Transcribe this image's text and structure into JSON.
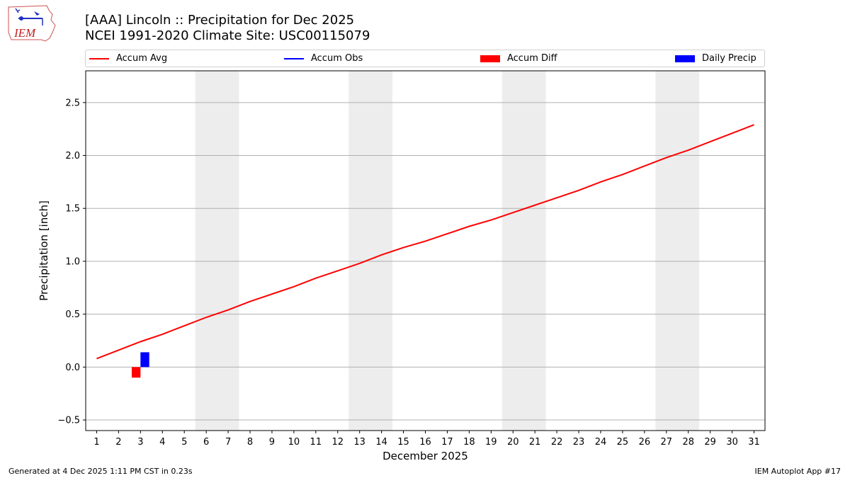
{
  "header": {
    "logo_text": "IEM",
    "title_line1": "[AAA] Lincoln :: Precipitation for Dec 2025",
    "title_line2": "NCEI 1991-2020 Climate Site: USC00115079"
  },
  "legend": [
    {
      "label": "Accum Avg",
      "type": "line",
      "color": "#ff0000"
    },
    {
      "label": "Accum Obs",
      "type": "line",
      "color": "#0000ff"
    },
    {
      "label": "Accum Diff",
      "type": "patch",
      "color": "#ff0000"
    },
    {
      "label": "Daily Precip",
      "type": "patch",
      "color": "#0000ff"
    }
  ],
  "footer": {
    "left": "Generated at 4 Dec 2025 1:11 PM CST in 0.23s",
    "right": "IEM Autoplot App #17"
  },
  "chart_data": {
    "type": "line",
    "title": "[AAA] Lincoln :: Precipitation for Dec 2025",
    "subtitle": "NCEI 1991-2020 Climate Site: USC00115079",
    "xlabel": "December 2025",
    "ylabel": "Precipitation [inch]",
    "ylim": [
      -0.6,
      2.8
    ],
    "xlim": [
      0.5,
      31.5
    ],
    "yticks": [
      -0.5,
      0.0,
      0.5,
      1.0,
      1.5,
      2.0,
      2.5
    ],
    "ytick_labels": [
      "−0.5",
      "0.0",
      "0.5",
      "1.0",
      "1.5",
      "2.0",
      "2.5"
    ],
    "x": [
      1,
      2,
      3,
      4,
      5,
      6,
      7,
      8,
      9,
      10,
      11,
      12,
      13,
      14,
      15,
      16,
      17,
      18,
      19,
      20,
      21,
      22,
      23,
      24,
      25,
      26,
      27,
      28,
      29,
      30,
      31
    ],
    "grid": "y",
    "legend_position": "top",
    "weekend_shading": [
      [
        5.5,
        7.5
      ],
      [
        12.5,
        14.5
      ],
      [
        19.5,
        21.5
      ],
      [
        26.5,
        28.5
      ]
    ],
    "series": [
      {
        "name": "Accum Avg",
        "type": "line",
        "color": "#ff0000",
        "values": [
          0.08,
          0.16,
          0.24,
          0.31,
          0.39,
          0.47,
          0.54,
          0.62,
          0.69,
          0.76,
          0.84,
          0.91,
          0.98,
          1.06,
          1.13,
          1.19,
          1.26,
          1.33,
          1.39,
          1.46,
          1.53,
          1.6,
          1.67,
          1.75,
          1.82,
          1.9,
          1.98,
          2.05,
          2.13,
          2.21,
          2.29
        ]
      },
      {
        "name": "Accum Obs",
        "type": "line",
        "color": "#0000ff",
        "values": []
      },
      {
        "name": "Accum Diff",
        "type": "bar",
        "color": "#ff0000",
        "x": [
          3
        ],
        "values": [
          -0.1
        ],
        "offset": -0.2
      },
      {
        "name": "Daily Precip",
        "type": "bar",
        "color": "#0000ff",
        "x": [
          3
        ],
        "values": [
          0.14
        ],
        "offset": 0.2
      }
    ]
  }
}
